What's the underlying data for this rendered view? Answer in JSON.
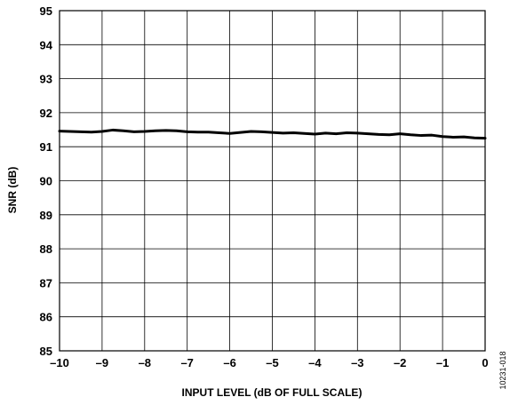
{
  "chart_data": {
    "type": "line",
    "title": "",
    "xlabel": "INPUT LEVEL (dB OF FULL SCALE)",
    "ylabel": "SNR (dB)",
    "xlim": [
      -10,
      0
    ],
    "ylim": [
      85,
      95
    ],
    "x_ticks": [
      -10,
      -9,
      -8,
      -7,
      -6,
      -5,
      -4,
      -3,
      -2,
      -1,
      0
    ],
    "x_tick_labels": [
      "–10",
      "–9",
      "–8",
      "–7",
      "–6",
      "–5",
      "–4",
      "–3",
      "–2",
      "–1",
      "0"
    ],
    "y_ticks": [
      85,
      86,
      87,
      88,
      89,
      90,
      91,
      92,
      93,
      94,
      95
    ],
    "y_tick_labels": [
      "85",
      "86",
      "87",
      "88",
      "89",
      "90",
      "91",
      "92",
      "93",
      "94",
      "95"
    ],
    "grid": true,
    "legend": false,
    "line_color": "#000000",
    "series": [
      {
        "x": [
          -10,
          -9.75,
          -9.5,
          -9.25,
          -9,
          -8.75,
          -8.5,
          -8.25,
          -8,
          -7.75,
          -7.5,
          -7.25,
          -7,
          -6.75,
          -6.5,
          -6.25,
          -6,
          -5.75,
          -5.5,
          -5.25,
          -5,
          -4.75,
          -4.5,
          -4.25,
          -4,
          -3.75,
          -3.5,
          -3.25,
          -3,
          -2.75,
          -2.5,
          -2.25,
          -2,
          -1.75,
          -1.5,
          -1.25,
          -1,
          -0.75,
          -0.5,
          -0.25,
          0
        ],
        "values": [
          91.46,
          91.45,
          91.44,
          91.43,
          91.45,
          91.49,
          91.47,
          91.44,
          91.45,
          91.47,
          91.48,
          91.47,
          91.44,
          91.43,
          91.43,
          91.41,
          91.39,
          91.42,
          91.45,
          91.44,
          91.42,
          91.4,
          91.41,
          91.39,
          91.37,
          91.4,
          91.38,
          91.41,
          91.4,
          91.38,
          91.36,
          91.35,
          91.38,
          91.35,
          91.33,
          91.34,
          91.3,
          91.28,
          91.29,
          91.26,
          91.25
        ]
      }
    ],
    "figure_id": "10231-018"
  }
}
